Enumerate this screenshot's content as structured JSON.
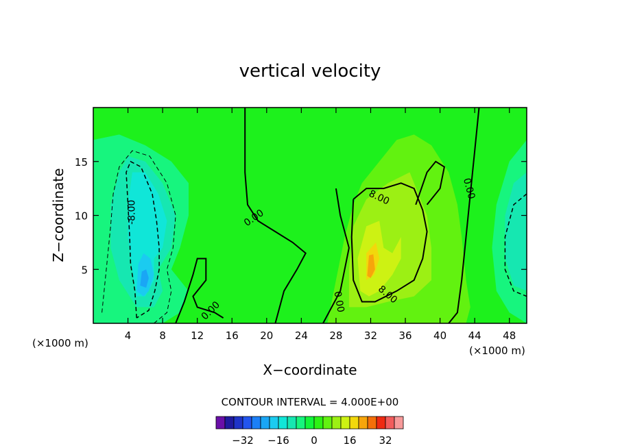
{
  "chart_data": {
    "type": "contour",
    "title": "vertical velocity",
    "xlabel": "X−coordinate",
    "ylabel": "Z−coordinate",
    "x_unit": "(×1000 m)",
    "x_unit_right": "(×1000 m)",
    "xlim": [
      0,
      50
    ],
    "ylim": [
      0,
      20
    ],
    "x_ticks": [
      4,
      8,
      12,
      16,
      20,
      24,
      28,
      32,
      36,
      40,
      44,
      48
    ],
    "y_ticks": [
      5,
      10,
      15
    ],
    "contour_interval_text": "CONTOUR INTERVAL = 4.000E+00",
    "contour_interval": 4,
    "contour_labels": [
      {
        "text": "0.00",
        "x": 18.5,
        "y": 9.8,
        "angle": 35
      },
      {
        "text": "0.00",
        "x": 13.5,
        "y": 1.2,
        "angle": 45
      },
      {
        "text": "0.00",
        "x": 28.4,
        "y": 2.0,
        "angle": -80
      },
      {
        "text": "0.00",
        "x": 43.4,
        "y": 12.5,
        "angle": -75
      },
      {
        "text": "8.00",
        "x": 33.0,
        "y": 11.7,
        "angle": -25
      },
      {
        "text": "8.00",
        "x": 34.0,
        "y": 2.7,
        "angle": -40
      },
      {
        "text": "-8.00",
        "x": 4.4,
        "y": 10.3,
        "angle": 90
      }
    ],
    "colorbar": {
      "levels": [
        -40,
        -36,
        -32,
        -28,
        -24,
        -20,
        -16,
        -12,
        -8,
        -4,
        0,
        4,
        8,
        12,
        16,
        20,
        24,
        28,
        32,
        36,
        40
      ],
      "colors": [
        "#6a0fa8",
        "#201a9e",
        "#1f34c8",
        "#2255ee",
        "#1c80f7",
        "#1aa6f5",
        "#1bcbf0",
        "#10e6d8",
        "#16e7b1",
        "#17f57e",
        "#12f53a",
        "#2df214",
        "#62f210",
        "#9cf014",
        "#cdf213",
        "#f2d80c",
        "#f7a50b",
        "#f46f09",
        "#ee2a12",
        "#f25c5c",
        "#f79a9a"
      ],
      "tick_labels": [
        "−32",
        "−16",
        "0",
        "16",
        "32"
      ],
      "tick_values": [
        -32,
        -16,
        0,
        16,
        32
      ]
    },
    "field_colors": {
      "background": "#1df11c",
      "neg1": "#17f57e",
      "neg2": "#16e7b1",
      "neg3": "#10e6d8",
      "neg4": "#1bcbf0",
      "neg5": "#1aa6f5",
      "pos1": "#62f210",
      "pos2": "#9cf014",
      "pos3": "#cdf213",
      "pos4": "#f2d80c",
      "pos5": "#f7a50b"
    }
  }
}
